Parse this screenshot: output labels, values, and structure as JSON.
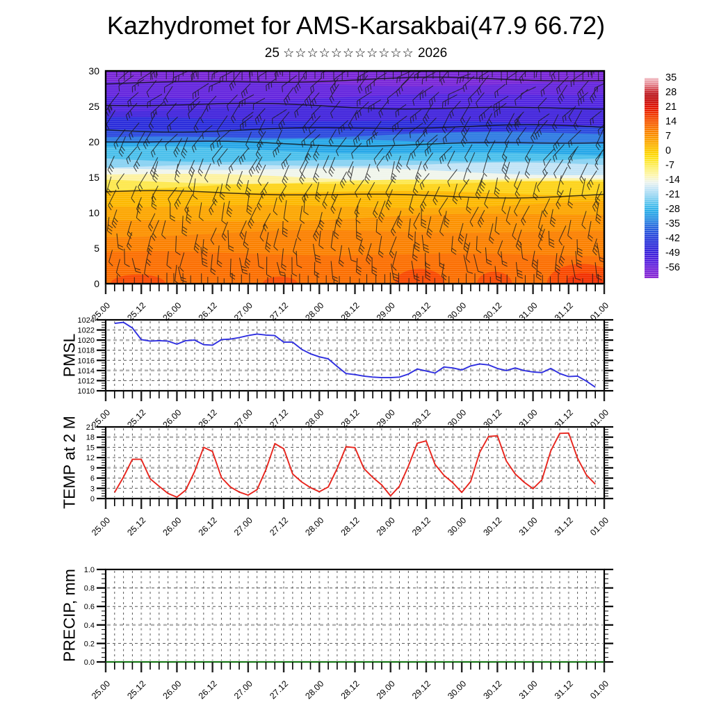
{
  "title": "Kazhydromet for AMS-Karsakbai(47.9 66.72)",
  "subtitle": {
    "day": "25",
    "stars": "☆☆☆☆☆☆☆☆☆☆☆",
    "year": "2026"
  },
  "time_axis": {
    "labels": [
      "25.00",
      "25.12",
      "26.00",
      "26.12",
      "27.00",
      "27.12",
      "28.00",
      "28.12",
      "29.00",
      "29.12",
      "30.00",
      "30.12",
      "31.00",
      "31.12",
      "01.00"
    ],
    "label_step_hours": 12,
    "minor_step_hours": 3,
    "total_hours": 168
  },
  "chart_data": [
    {
      "id": "wind_temp_cross_section",
      "type": "heatmap",
      "ylim": [
        0,
        30
      ],
      "yticks": [
        0,
        5,
        10,
        15,
        20,
        25,
        30
      ],
      "colorbar": {
        "ticks": [
          35,
          28,
          21,
          14,
          7,
          0,
          -7,
          -14,
          -21,
          -28,
          -35,
          -42,
          -49,
          -56
        ],
        "value_top": 36,
        "value_bottom": -60,
        "stops": [
          [
            36,
            "#f2bfc6"
          ],
          [
            33,
            "#e78e97"
          ],
          [
            30,
            "#cf3a42"
          ],
          [
            28,
            "#b9141b"
          ],
          [
            25,
            "#c80f0e"
          ],
          [
            22,
            "#e31505"
          ],
          [
            19,
            "#ef3302"
          ],
          [
            15,
            "#f65902"
          ],
          [
            11,
            "#f97d02"
          ],
          [
            7,
            "#fb9b02"
          ],
          [
            3,
            "#fcba02"
          ],
          [
            0,
            "#fdd302"
          ],
          [
            -3,
            "#fde426"
          ],
          [
            -7,
            "#fdf06e"
          ],
          [
            -11,
            "#fdf6b4"
          ],
          [
            -14,
            "#eef4ee"
          ],
          [
            -17,
            "#c6e6f6"
          ],
          [
            -21,
            "#90d4f2"
          ],
          [
            -25,
            "#4fc0ed"
          ],
          [
            -28,
            "#2aace8"
          ],
          [
            -32,
            "#2b8de2"
          ],
          [
            -35,
            "#2b6cde"
          ],
          [
            -39,
            "#2b4edc"
          ],
          [
            -42,
            "#2a38da"
          ],
          [
            -46,
            "#3328da"
          ],
          [
            -49,
            "#4523dc"
          ],
          [
            -53,
            "#5c21de"
          ],
          [
            -56,
            "#7624d9"
          ],
          [
            -60,
            "#8e2cd2"
          ]
        ]
      },
      "bands": [
        {
          "upto": 4.2,
          "color": "#fb6f02"
        },
        {
          "upto": 7.0,
          "color": "#fb8102"
        },
        {
          "upto": 9.3,
          "color": "#fc9202"
        },
        {
          "upto": 11.2,
          "color": "#fca602"
        },
        {
          "upto": 12.8,
          "color": "#fdb902"
        },
        {
          "upto": 13.8,
          "color": "#fdd31a"
        },
        {
          "upto": 14.6,
          "color": "#fde84e"
        },
        {
          "upto": 15.1,
          "color": "#fdf2a0"
        },
        {
          "upto": 15.8,
          "color": "#f0f5ec"
        },
        {
          "upto": 16.6,
          "color": "#c2e4f6"
        },
        {
          "upto": 17.6,
          "color": "#8ad2f2"
        },
        {
          "upto": 18.7,
          "color": "#4cc0ec"
        },
        {
          "upto": 19.8,
          "color": "#28a8e8"
        },
        {
          "upto": 20.9,
          "color": "#2f7ce2"
        },
        {
          "upto": 21.9,
          "color": "#2c4ade"
        },
        {
          "upto": 22.9,
          "color": "#2c2edb"
        },
        {
          "upto": 24.6,
          "color": "#4326dc"
        },
        {
          "upto": 26.5,
          "color": "#5226e0"
        },
        {
          "upto": 28.4,
          "color": "#6526de"
        },
        {
          "upto": 30,
          "color": "#7a28d8"
        }
      ],
      "contour_levels": [
        12.6,
        19.9,
        21.9,
        25.0,
        28.6
      ],
      "hot_patches": [
        {
          "cx": 0.065,
          "rx": 0.055,
          "h": 1.3,
          "color": "#f84a02"
        },
        {
          "cx": 0.35,
          "rx": 0.035,
          "h": 1.0,
          "color": "#f84a02"
        },
        {
          "cx": 0.63,
          "rx": 0.05,
          "h": 2.1,
          "color": "#f84a02"
        },
        {
          "cx": 0.78,
          "rx": 0.035,
          "h": 1.7,
          "color": "#f84a02"
        },
        {
          "cx": 0.955,
          "rx": 0.07,
          "h": 2.8,
          "color": "#f84a02"
        },
        {
          "cx": 0.96,
          "rx": 0.038,
          "h": 1.5,
          "color": "#f23102"
        }
      ],
      "barbs": {
        "cols": 27,
        "rows": 16,
        "seed": 20260125,
        "color": "#1a1a1a"
      }
    },
    {
      "id": "pmsl",
      "type": "line",
      "ylabel": "PMSL",
      "ylim": [
        1010,
        1024
      ],
      "ytick_step": 2,
      "emphasized_gridlines": [
        1020,
        1014
      ],
      "color": "#2e2ee0",
      "start_hour": 3,
      "step_hours": 3,
      "values": [
        1023.3,
        1023.5,
        1022.4,
        1020.1,
        1019.8,
        1019.9,
        1019.8,
        1019.2,
        1019.9,
        1020.0,
        1019.1,
        1019.0,
        1020.1,
        1020.2,
        1020.5,
        1020.9,
        1021.2,
        1021.0,
        1020.9,
        1019.6,
        1019.6,
        1018.2,
        1017.3,
        1016.7,
        1016.3,
        1014.8,
        1013.4,
        1013.2,
        1012.9,
        1012.7,
        1012.6,
        1012.6,
        1012.7,
        1013.3,
        1014.3,
        1013.9,
        1013.5,
        1014.7,
        1014.5,
        1014.1,
        1014.9,
        1015.3,
        1015.1,
        1014.4,
        1014.0,
        1014.5,
        1014.0,
        1013.7,
        1013.6,
        1014.4,
        1013.4,
        1012.8,
        1012.9,
        1011.9,
        1010.7
      ]
    },
    {
      "id": "temp2m",
      "type": "line",
      "ylabel": "TEMP at 2 M",
      "ylim": [
        0,
        21
      ],
      "ytick_step": 3,
      "emphasized_gridlines": [
        18,
        9
      ],
      "color": "#e8241c",
      "start_hour": 3,
      "step_hours": 3,
      "values": [
        1.8,
        6.3,
        11.5,
        11.5,
        5.8,
        3.6,
        1.5,
        0.4,
        2.5,
        8.0,
        15.0,
        13.8,
        6.2,
        3.4,
        1.9,
        1.0,
        2.6,
        8.5,
        16.1,
        14.6,
        7.2,
        4.9,
        3.2,
        2.0,
        3.4,
        8.8,
        15.2,
        14.9,
        8.8,
        6.2,
        4.0,
        0.8,
        3.6,
        9.5,
        16.2,
        16.9,
        10.0,
        6.8,
        4.6,
        1.8,
        5.0,
        13.5,
        18.2,
        18.4,
        11.0,
        7.2,
        4.8,
        2.9,
        5.5,
        14.0,
        19.1,
        19.2,
        11.8,
        6.9,
        4.2
      ]
    },
    {
      "id": "precip",
      "type": "line",
      "ylabel": "PRECIP, mm",
      "ylim": [
        0,
        1
      ],
      "ytick_step": 0.2,
      "emphasized_gridlines": [
        0.4
      ],
      "color": "#157a15",
      "start_hour": 0,
      "step_hours": 3,
      "values": [
        0,
        0,
        0,
        0,
        0,
        0,
        0,
        0,
        0,
        0,
        0,
        0,
        0,
        0,
        0,
        0,
        0,
        0,
        0,
        0,
        0,
        0,
        0,
        0,
        0,
        0,
        0,
        0,
        0,
        0,
        0,
        0,
        0,
        0,
        0,
        0,
        0,
        0,
        0,
        0,
        0,
        0,
        0,
        0,
        0,
        0,
        0,
        0,
        0,
        0,
        0,
        0,
        0,
        0,
        0,
        0,
        0
      ]
    }
  ]
}
